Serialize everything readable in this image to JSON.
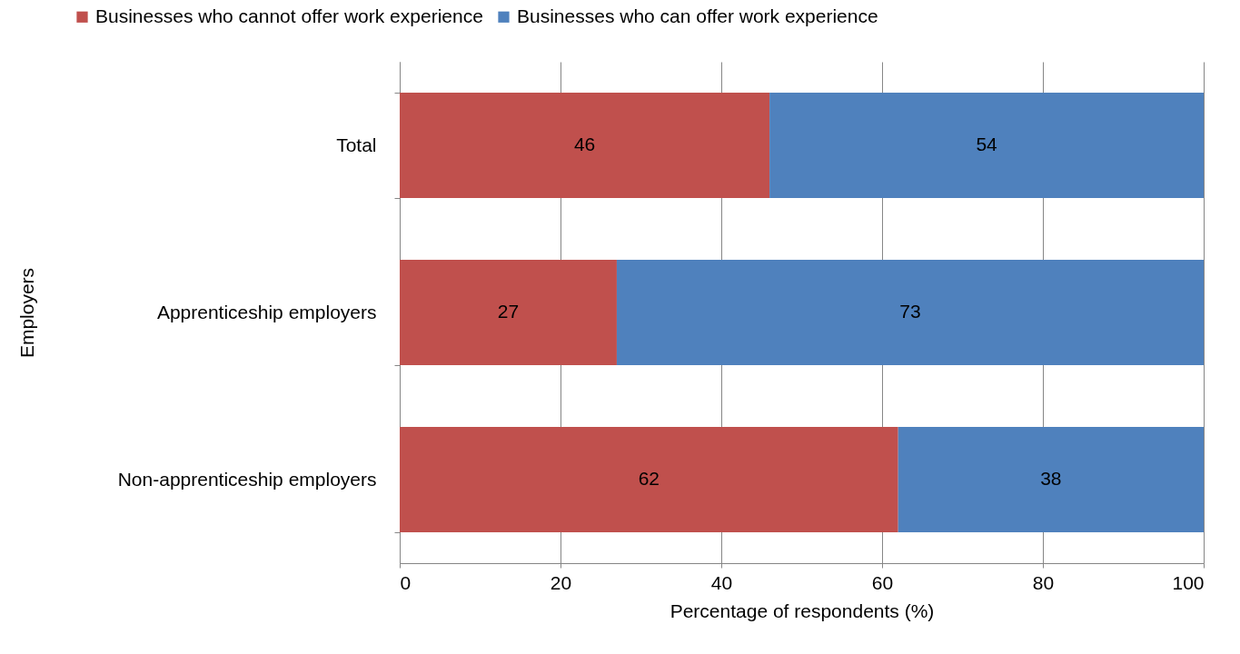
{
  "chart_data": {
    "type": "bar",
    "orientation": "horizontal",
    "stacked": true,
    "xlabel": "Percentage of respondents (%)",
    "ylabel": "Employers",
    "categories": [
      "Total",
      "Apprenticeship employers",
      "Non-apprenticeship employers"
    ],
    "series": [
      {
        "name": "Businesses who cannot offer work experience",
        "color": "#c0504d",
        "values": [
          46,
          27,
          62
        ]
      },
      {
        "name": "Businesses who can offer work experience",
        "color": "#4f81bd",
        "values": [
          54,
          73,
          38
        ]
      }
    ],
    "xlim": [
      0,
      100
    ],
    "xticks": [
      0,
      20,
      40,
      60,
      80,
      100
    ],
    "grid": "x",
    "legend": "top",
    "data_labels": true
  }
}
